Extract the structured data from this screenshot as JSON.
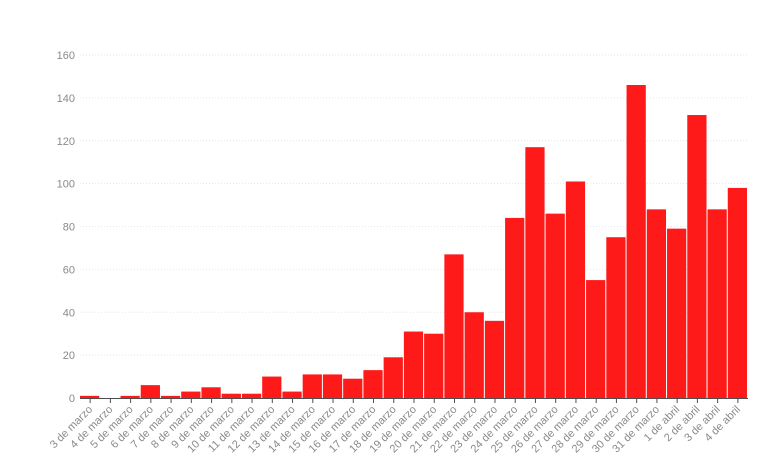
{
  "chart_data": {
    "type": "bar",
    "title": "",
    "xlabel": "",
    "ylabel": "",
    "ylim": [
      0,
      160
    ],
    "yticks": [
      "0",
      "20",
      "40",
      "60",
      "80",
      "100",
      "120",
      "140",
      "160"
    ],
    "grid": true,
    "bar_color": "#ff1a1a",
    "categories": [
      "3 de marzo",
      "4 de marzo",
      "5 de marzo",
      "6 de marzo",
      "7 de marzo",
      "8 de marzo",
      "9 de marzo",
      "10 de marzo",
      "11 de marzo",
      "12 de marzo",
      "13 de marzo",
      "14 de marzo",
      "15 de marzo",
      "16 de marzo",
      "17 de marzo",
      "18 de marzo",
      "19 de marzo",
      "20 de marzo",
      "21 de marzo",
      "22 de marzo",
      "23 de marzo",
      "24 de marzo",
      "25 de marzo",
      "26 de marzo",
      "27 de marzo",
      "28 de marzo",
      "29 de marzo",
      "30 de marzo",
      "31 de marzo",
      "1 de abril",
      "2 de abril",
      "3 de abril",
      "4 de abril"
    ],
    "values": [
      1,
      0,
      1,
      6,
      1,
      3,
      5,
      2,
      2,
      10,
      3,
      11,
      11,
      9,
      13,
      19,
      31,
      30,
      67,
      40,
      36,
      84,
      117,
      86,
      101,
      55,
      75,
      146,
      88,
      79,
      132,
      88,
      98
    ]
  }
}
